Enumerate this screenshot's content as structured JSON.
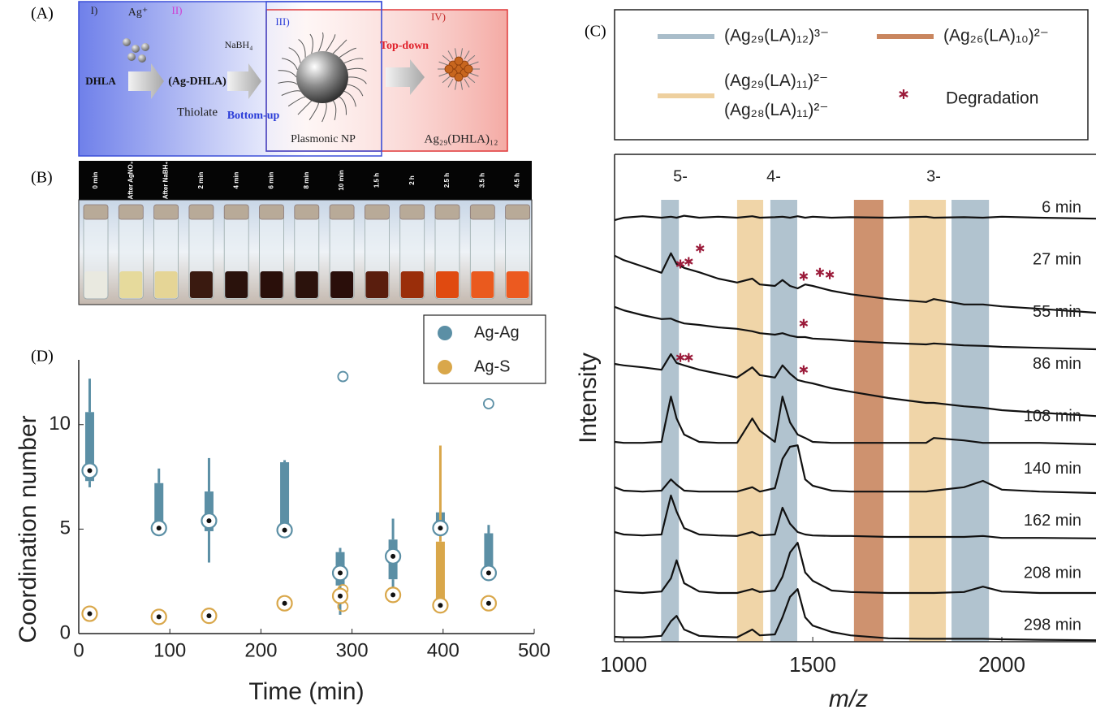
{
  "panel_labels": [
    "(A)",
    "(B)",
    "(C)",
    "(D)"
  ],
  "scheme": {
    "step_1": "I)",
    "ag_ion": "Ag⁺",
    "step_2": "II)",
    "dhla": "DHLA",
    "ag_dhla": "(Ag-DHLA)",
    "reductant": "NaBH₄",
    "thiolate": "Thiolate",
    "bottom_up": "Bottom-up",
    "step_3": "III)",
    "plasmonic": "Plasmonic NP",
    "step_4": "IV)",
    "top_down": "Top-down",
    "product": "Ag₂₉(DHLA)₁₂"
  },
  "photo": {
    "labels": [
      "0 min",
      "After AgNO₃",
      "After NaBH₄",
      "2 min",
      "4 min",
      "6 min",
      "8 min",
      "10 min",
      "1.5 h",
      "2 h",
      "2.5 h",
      "3.5 h",
      "4.5 h"
    ]
  },
  "chart_data": [
    {
      "type": "box",
      "xlabel": "Time (min)",
      "ylabel": "Coordination number",
      "xlim": [
        0,
        500
      ],
      "xticks": [
        0,
        100,
        200,
        300,
        400,
        500
      ],
      "ylim": [
        0,
        13.1
      ],
      "yticks": [
        0,
        5,
        10
      ],
      "legend": "upper right",
      "series": [
        {
          "name": "Ag-Ag",
          "color": "#5b8fa5",
          "x": [
            12,
            88,
            143,
            226,
            287,
            345,
            397,
            450
          ],
          "values": [
            7.8,
            5.05,
            5.4,
            4.95,
            2.9,
            3.7,
            5.05,
            2.9
          ],
          "q1": [
            7.3,
            5.0,
            4.9,
            4.9,
            2.3,
            2.6,
            4.8,
            2.9
          ],
          "q3": [
            10.6,
            7.2,
            6.8,
            8.2,
            3.9,
            4.5,
            5.8,
            4.8
          ],
          "lo": [
            7.0,
            null,
            3.4,
            null,
            0.9,
            1.7,
            null,
            null
          ],
          "hi": [
            12.2,
            7.9,
            8.4,
            8.3,
            4.1,
            5.5,
            null,
            5.2
          ],
          "outliers_x": [
            290,
            450
          ],
          "outliers": [
            12.3,
            11.0
          ]
        },
        {
          "name": "Ag-S",
          "color": "#d9a74a",
          "x": [
            12,
            88,
            143,
            226,
            287,
            345,
            397,
            450
          ],
          "values": [
            0.95,
            0.8,
            0.85,
            1.45,
            1.8,
            1.85,
            1.35,
            1.45
          ],
          "q1": [
            null,
            null,
            null,
            null,
            null,
            null,
            1.3,
            null
          ],
          "q3": [
            null,
            null,
            null,
            null,
            null,
            null,
            4.4,
            null
          ],
          "lo": [
            null,
            null,
            null,
            null,
            null,
            null,
            null,
            null
          ],
          "hi": [
            null,
            null,
            null,
            null,
            null,
            null,
            9.0,
            null
          ],
          "outliers_x": [
            290,
            290
          ],
          "outliers": [
            2.1,
            1.3
          ]
        }
      ]
    },
    {
      "type": "line",
      "xlabel": "m/z",
      "ylabel": "Intensity",
      "xlim": [
        976,
        2249
      ],
      "xticks": [
        1000,
        1500,
        2000
      ],
      "ylim": [
        0,
        100
      ],
      "annotations": [
        "5-",
        "4-",
        "3-"
      ],
      "x": [
        976,
        1000,
        1050,
        1100,
        1125,
        1140,
        1160,
        1200,
        1250,
        1300,
        1340,
        1360,
        1400,
        1420,
        1440,
        1460,
        1480,
        1500,
        1550,
        1600,
        1700,
        1800,
        1820,
        1900,
        1950,
        2000,
        2100,
        2249
      ],
      "series": [
        {
          "name": "6 min",
          "color": "#111111",
          "values": [
            86.5,
            87,
            87.3,
            87,
            87.2,
            87,
            87.4,
            87,
            87.2,
            87,
            87.3,
            87,
            87.1,
            87.2,
            87,
            87.3,
            87,
            87.2,
            87,
            87.1,
            87,
            87.2,
            87,
            87.1,
            87,
            87.2,
            87,
            86.8
          ]
        },
        {
          "name": "27 min",
          "color": "#111111",
          "values": [
            79.2,
            78.3,
            77,
            75.7,
            79.7,
            77.5,
            76.7,
            75.8,
            74.5,
            73.7,
            74.5,
            73.3,
            73,
            74.2,
            73,
            72.5,
            73.3,
            73,
            72,
            71.3,
            70.3,
            69.7,
            70.3,
            69.2,
            69.2,
            68.8,
            68.3,
            67.5
          ]
        },
        {
          "name": "55 min",
          "color": "#111111",
          "values": [
            68.7,
            68,
            67,
            66.2,
            66.3,
            65.8,
            65.3,
            65,
            64.5,
            64.2,
            63.7,
            63.3,
            63,
            63.3,
            62.8,
            62.5,
            62.5,
            62.2,
            62,
            61.7,
            61.3,
            61,
            61.2,
            60.8,
            60.7,
            60.5,
            60.3,
            60
          ]
        },
        {
          "name": "86 min",
          "color": "#111111",
          "values": [
            57,
            56.7,
            56.3,
            55.8,
            59,
            57.2,
            56.7,
            55.8,
            55,
            54.2,
            56.3,
            54.7,
            54.2,
            56.7,
            55,
            53.7,
            53.3,
            53,
            52,
            51.3,
            50,
            49,
            49,
            48.3,
            48,
            47.5,
            47,
            46.3
          ]
        },
        {
          "name": "108 min",
          "color": "#111111",
          "values": [
            41,
            40.8,
            40.8,
            41,
            50.3,
            45.8,
            42.5,
            41,
            40.8,
            40.8,
            45.8,
            43.3,
            41,
            50.3,
            45,
            42.5,
            41.8,
            41,
            40.8,
            40.8,
            40.8,
            40.8,
            41.8,
            41.3,
            40.8,
            40.8,
            40.8,
            40.5
          ]
        },
        {
          "name": "140 min",
          "color": "#111111",
          "values": [
            31.7,
            31,
            30.8,
            31,
            33.3,
            32.2,
            31,
            30.8,
            30.8,
            30.8,
            31.7,
            30.8,
            31.5,
            37.5,
            40,
            40.3,
            33.3,
            32,
            31,
            30.8,
            30.8,
            30.8,
            31,
            31.7,
            33,
            31.2,
            30.8,
            30.5
          ]
        },
        {
          "name": "162 min",
          "color": "#111111",
          "values": [
            22.5,
            22,
            21.8,
            22,
            30,
            26.7,
            23.3,
            22,
            21.8,
            21.7,
            22.5,
            21.8,
            22,
            27.5,
            24.2,
            22.5,
            22,
            21.8,
            21.7,
            21.7,
            21.5,
            21.5,
            21.5,
            21.5,
            21.7,
            21.3,
            21.3,
            21.2
          ]
        },
        {
          "name": "208 min",
          "color": "#111111",
          "values": [
            10.5,
            10.2,
            10,
            10.3,
            13,
            16.7,
            12,
            10.3,
            10,
            10,
            10.8,
            10.2,
            10.5,
            13.3,
            18.3,
            20.3,
            14.2,
            12.5,
            10.5,
            10.2,
            10,
            10,
            10,
            10.2,
            11.3,
            10.3,
            10,
            10
          ]
        },
        {
          "name": "298 min",
          "color": "#111111",
          "values": [
            1,
            0.9,
            0.9,
            1.2,
            4.2,
            5.3,
            2.5,
            1.2,
            1,
            0.9,
            2.5,
            1.3,
            1.5,
            5,
            9.2,
            10.8,
            5,
            3.3,
            2,
            1.3,
            0.7,
            0.6,
            0.6,
            0.6,
            0.6,
            0.5,
            0.4,
            0.3
          ]
        }
      ],
      "bands": [
        {
          "name": "(Ag₂₉(LA)₁₂)³⁻",
          "color": "#a9bdca",
          "ranges": [
            [
              1099,
              1146
            ],
            [
              1388,
              1459
            ],
            [
              1867,
              1966
            ]
          ]
        },
        {
          "name": "(Ag₂₆(LA)₁₀)²⁻",
          "color": "#c9865f",
          "ranges": [
            [
              1609,
              1687
            ]
          ]
        },
        {
          "name": "(Ag₂₉(LA)₁₁)²⁻\n(Ag₂₈(LA)₁₁)²⁻",
          "color": "#eed09f",
          "ranges": [
            [
              1300,
              1369
            ],
            [
              1755,
              1852
            ]
          ]
        }
      ],
      "markers": {
        "name": "Degradation",
        "color": "#9b1b3a",
        "x": [
          1150,
          1172,
          1202,
          1476,
          1519,
          1545,
          1476,
          1150,
          1172,
          1476
        ],
        "values": [
          77.5,
          78,
          80.7,
          75,
          75.8,
          75.3,
          65.3,
          58.3,
          58.3,
          55.8
        ]
      }
    }
  ]
}
